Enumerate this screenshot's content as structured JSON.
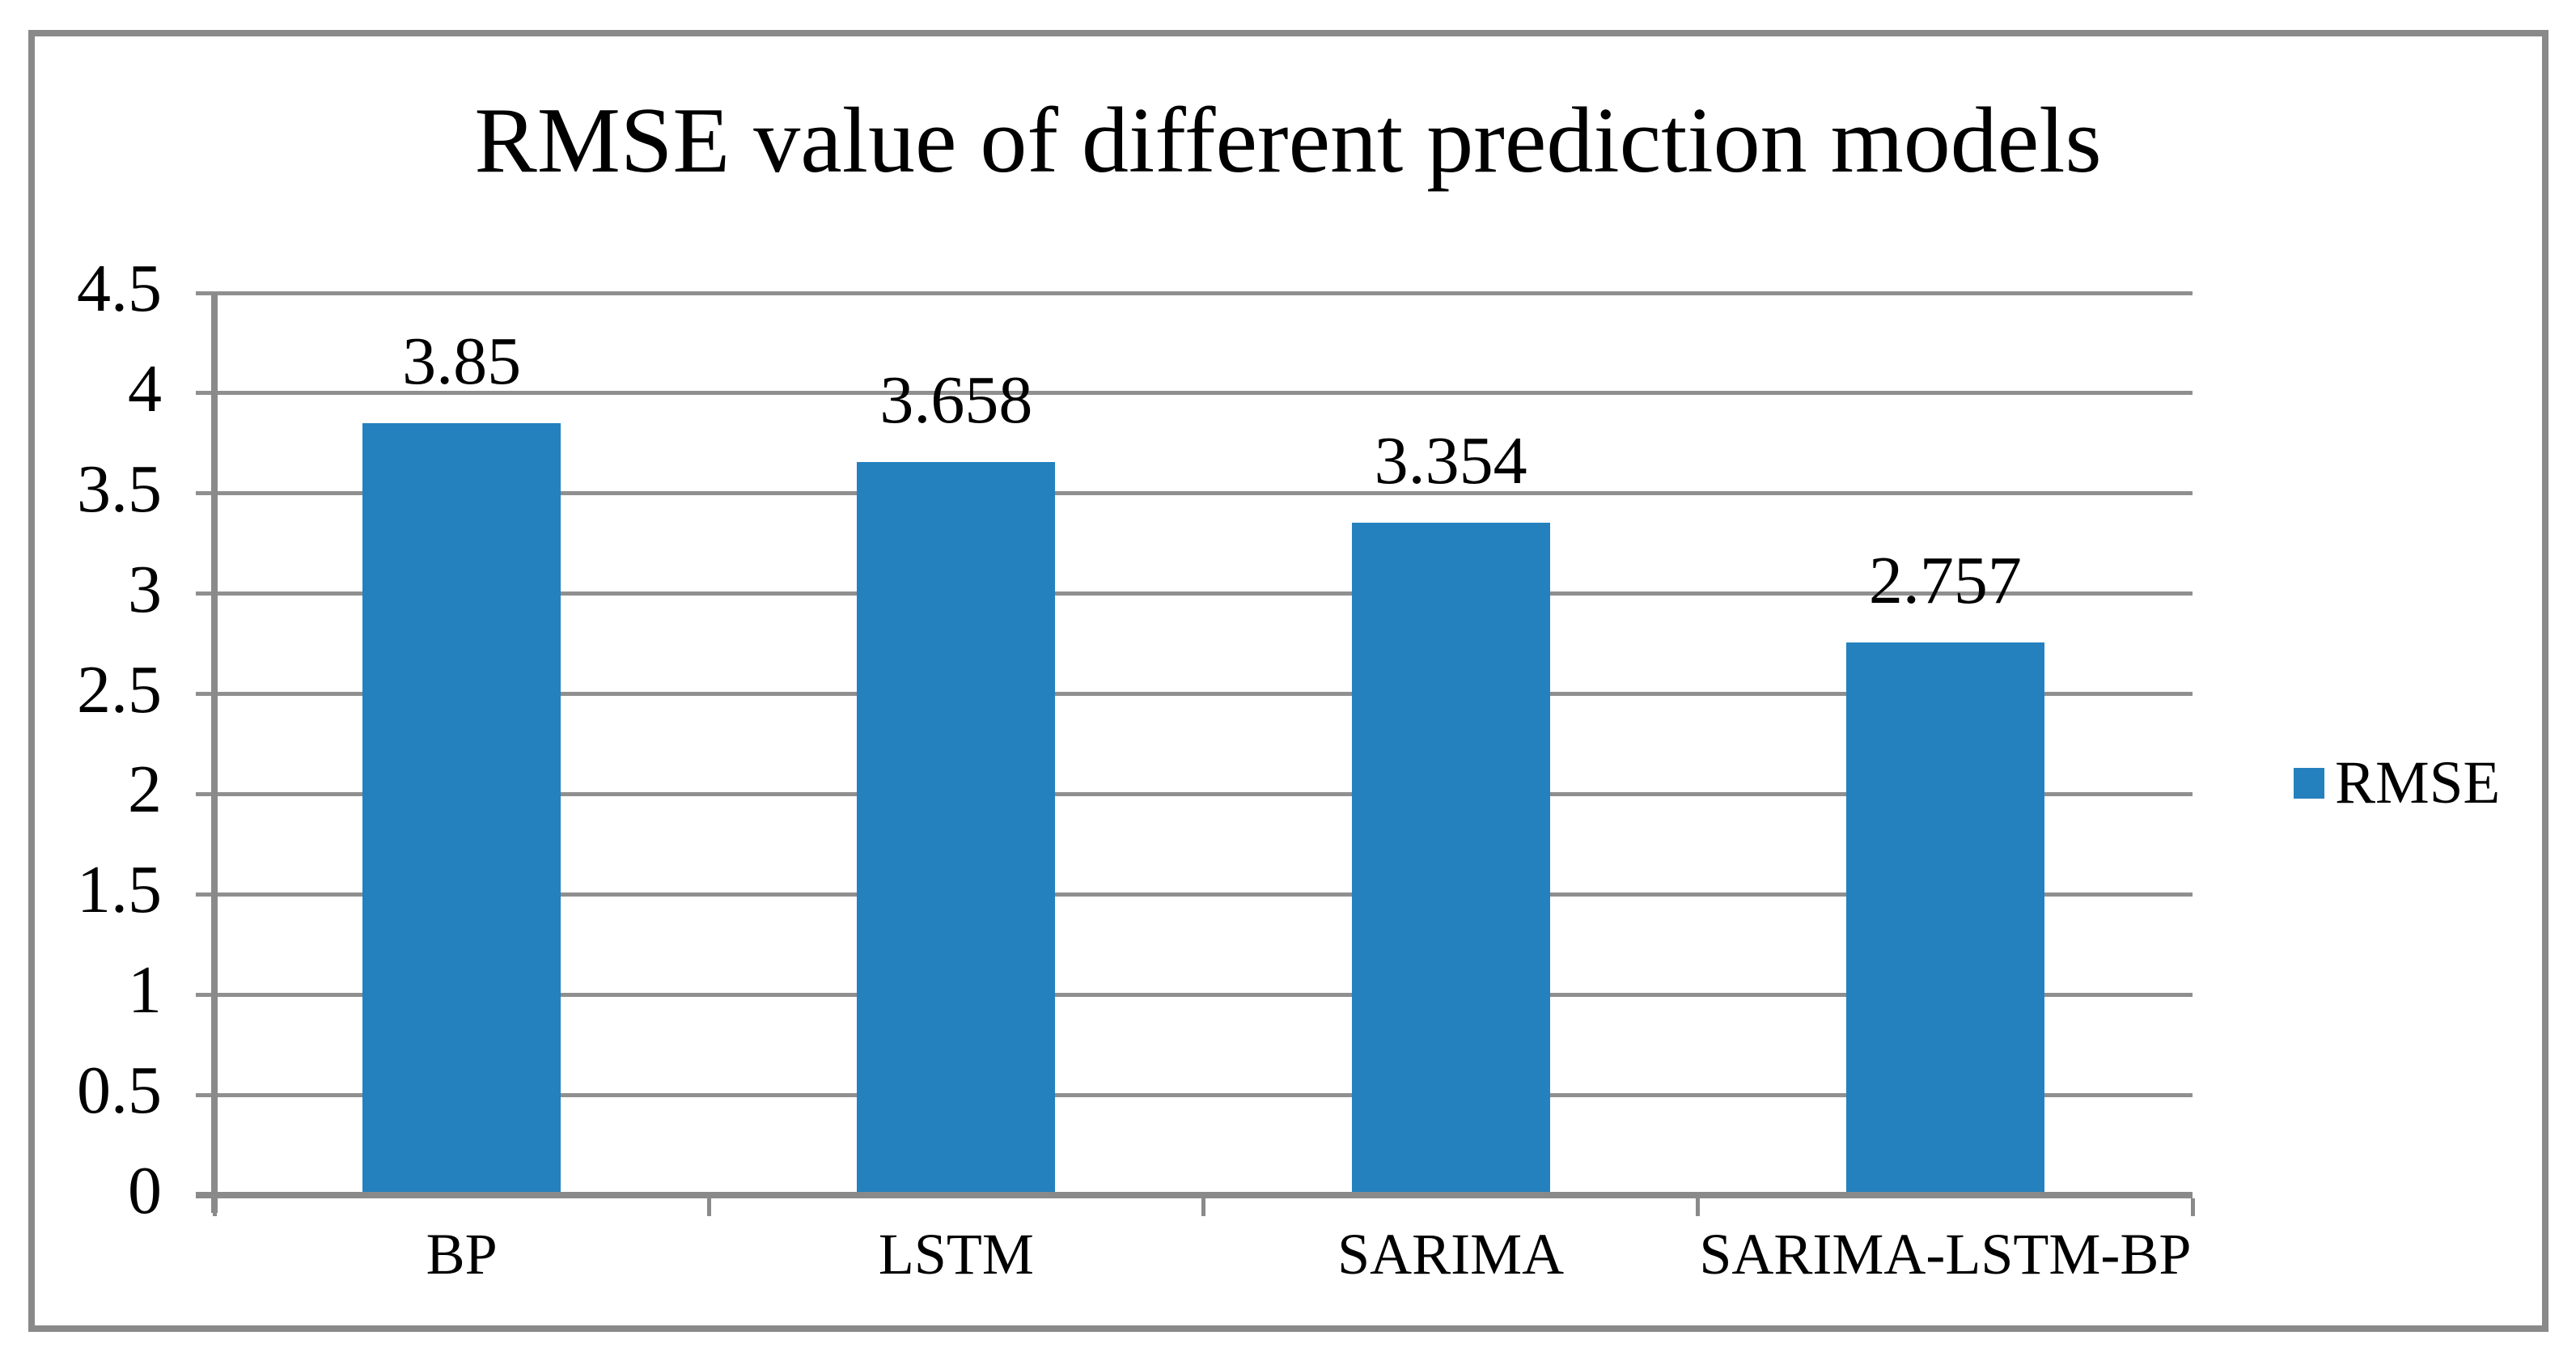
{
  "chart_data": {
    "type": "bar",
    "title": "RMSE value of different prediction models",
    "categories": [
      "BP",
      "LSTM",
      "SARIMA",
      "SARIMA-LSTM-BP"
    ],
    "series": [
      {
        "name": "RMSE",
        "values": [
          3.85,
          3.658,
          3.354,
          2.757
        ]
      }
    ],
    "data_labels": [
      "3.85",
      "3.658",
      "3.354",
      "2.757"
    ],
    "xlabel": "",
    "ylabel": "",
    "ylim": [
      0,
      4.5
    ],
    "ytick_step": 0.5,
    "y_tick_labels": [
      "0",
      "0.5",
      "1",
      "1.5",
      "2",
      "2.5",
      "3",
      "3.5",
      "4",
      "4.5"
    ],
    "grid": true,
    "legend": {
      "label": "RMSE",
      "position": "right",
      "swatch_icon": "blue-square-icon"
    }
  },
  "colors": {
    "bar": "#2481BE",
    "gridline": "#8F8F8F",
    "axis": "#8A8A8A",
    "border": "#898989",
    "text": "#000000",
    "background": "#FFFFFF"
  }
}
